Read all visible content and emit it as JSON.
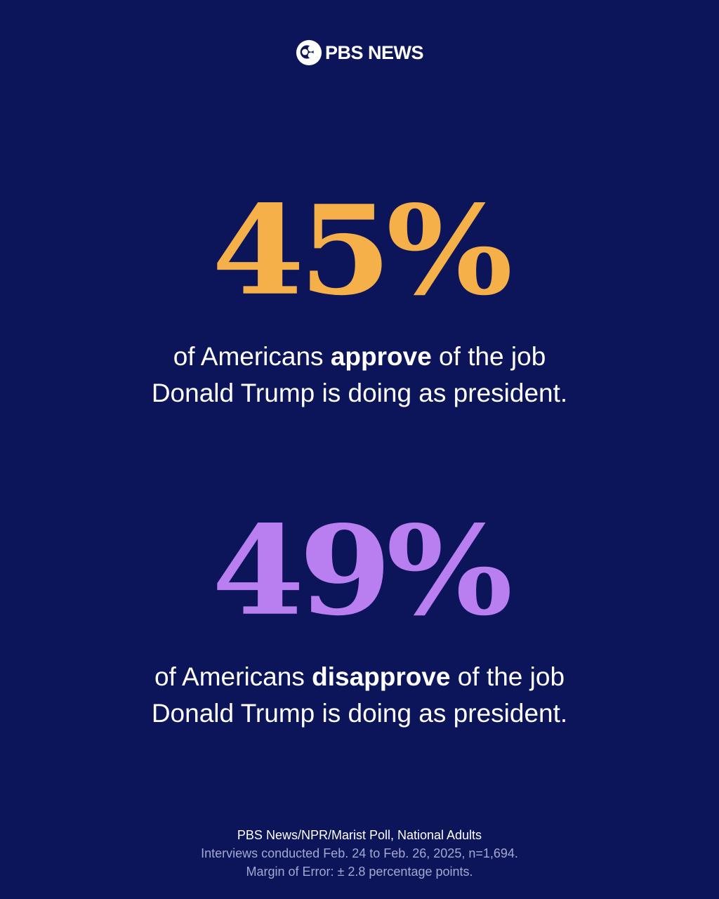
{
  "brand": {
    "name": "PBS NEWS"
  },
  "colors": {
    "background": "#0c1559",
    "approve": "#f5b04a",
    "disapprove": "#b97ef0",
    "text": "#ffffff",
    "muted": "#a3a9d0"
  },
  "approve": {
    "percent": "45%",
    "text_before": "of Americans ",
    "emphasis": "approve",
    "text_after": " of the job",
    "line2": "Donald Trump is doing as president."
  },
  "disapprove": {
    "percent": "49%",
    "text_before": "of Americans ",
    "emphasis": "disapprove",
    "text_after": " of the job",
    "line2": "Donald Trump is doing as president."
  },
  "source": {
    "poll": "PBS News/NPR/Marist Poll, National Adults",
    "dates": "Interviews conducted Feb. 24 to Feb. 26, 2025, n=1,694.",
    "margin": "Margin of Error: ± 2.8 percentage points."
  }
}
